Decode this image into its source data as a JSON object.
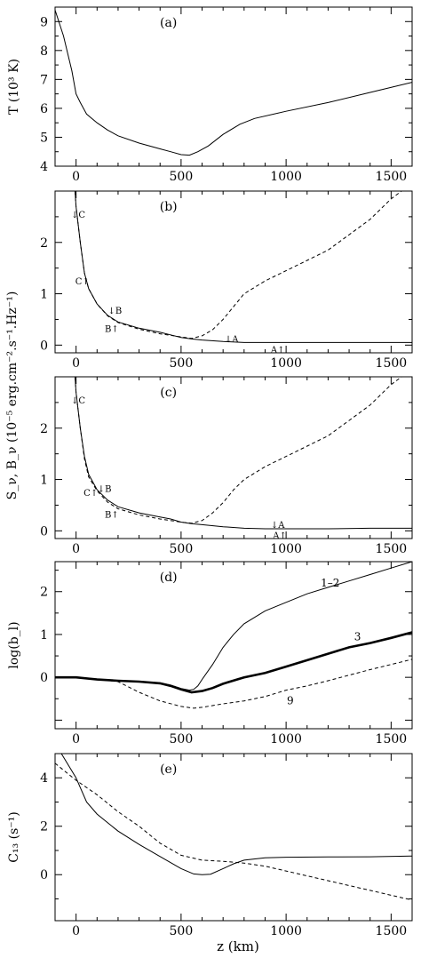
{
  "chart_data": [
    {
      "type": "line",
      "panel_label": "(a)",
      "ylabel": "T (10³ K)",
      "xlim": [
        -100,
        1600
      ],
      "ylim": [
        4,
        9.5
      ],
      "yticks": [
        4,
        5,
        6,
        7,
        8,
        9
      ],
      "xticks": [
        0,
        500,
        1000,
        1500
      ],
      "xtick_labels": [
        "0",
        "500",
        "1000",
        "1500"
      ],
      "series": [
        {
          "style": "solid",
          "width": 1,
          "points": [
            [
              -100,
              9.4
            ],
            [
              -60,
              8.5
            ],
            [
              -20,
              7.3
            ],
            [
              0,
              6.5
            ],
            [
              20,
              6.2
            ],
            [
              50,
              5.8
            ],
            [
              100,
              5.5
            ],
            [
              150,
              5.25
            ],
            [
              200,
              5.05
            ],
            [
              300,
              4.8
            ],
            [
              400,
              4.6
            ],
            [
              450,
              4.5
            ],
            [
              500,
              4.4
            ],
            [
              540,
              4.38
            ],
            [
              580,
              4.5
            ],
            [
              630,
              4.7
            ],
            [
              700,
              5.1
            ],
            [
              780,
              5.45
            ],
            [
              850,
              5.65
            ],
            [
              1000,
              5.9
            ],
            [
              1200,
              6.2
            ],
            [
              1400,
              6.55
            ],
            [
              1600,
              6.9
            ]
          ]
        }
      ]
    },
    {
      "type": "line",
      "panel_label": "(b)",
      "xlim": [
        -100,
        1600
      ],
      "ylim": [
        -0.15,
        3.0
      ],
      "yticks": [
        0,
        1,
        2
      ],
      "xticks": [
        0,
        500,
        1000,
        1500
      ],
      "xtick_labels": [
        "0",
        "500",
        "1000",
        "1500"
      ],
      "series": [
        {
          "style": "solid",
          "width": 1,
          "points": [
            [
              -5,
              3.0
            ],
            [
              0,
              2.7
            ],
            [
              20,
              2.0
            ],
            [
              40,
              1.4
            ],
            [
              60,
              1.1
            ],
            [
              100,
              0.8
            ],
            [
              150,
              0.58
            ],
            [
              200,
              0.45
            ],
            [
              300,
              0.33
            ],
            [
              400,
              0.25
            ],
            [
              450,
              0.2
            ],
            [
              500,
              0.15
            ],
            [
              550,
              0.12
            ],
            [
              600,
              0.1
            ],
            [
              700,
              0.07
            ],
            [
              800,
              0.05
            ],
            [
              1000,
              0.05
            ],
            [
              1200,
              0.05
            ],
            [
              1400,
              0.05
            ],
            [
              1600,
              0.05
            ]
          ]
        },
        {
          "style": "dashed",
          "width": 1,
          "points": [
            [
              -5,
              3.0
            ],
            [
              0,
              2.7
            ],
            [
              20,
              2.0
            ],
            [
              40,
              1.4
            ],
            [
              60,
              1.1
            ],
            [
              100,
              0.8
            ],
            [
              150,
              0.57
            ],
            [
              200,
              0.44
            ],
            [
              300,
              0.31
            ],
            [
              400,
              0.22
            ],
            [
              500,
              0.16
            ],
            [
              550,
              0.13
            ],
            [
              600,
              0.18
            ],
            [
              650,
              0.3
            ],
            [
              700,
              0.5
            ],
            [
              750,
              0.75
            ],
            [
              800,
              1.0
            ],
            [
              900,
              1.25
            ],
            [
              1000,
              1.45
            ],
            [
              1100,
              1.65
            ],
            [
              1200,
              1.85
            ],
            [
              1300,
              2.15
            ],
            [
              1400,
              2.45
            ],
            [
              1500,
              2.85
            ],
            [
              1550,
              3.0
            ]
          ]
        }
      ],
      "annotations": [
        {
          "text": "↓C",
          "x": 10,
          "y": 2.55
        },
        {
          "text": "C↑",
          "x": 30,
          "y": 1.25
        },
        {
          "text": "↓B",
          "x": 185,
          "y": 0.68
        },
        {
          "text": "B↑",
          "x": 170,
          "y": 0.33
        },
        {
          "text": "↓A",
          "x": 740,
          "y": 0.13
        },
        {
          "text": "A↑",
          "x": 960,
          "y": -0.08
        }
      ]
    },
    {
      "type": "line",
      "panel_label": "(c)",
      "ylabel": "S_ν, B_ν (10⁻⁵ erg.cm⁻².s⁻¹.Hz⁻¹)",
      "xlim": [
        -100,
        1600
      ],
      "ylim": [
        -0.15,
        3.0
      ],
      "yticks": [
        0,
        1,
        2
      ],
      "xticks": [
        0,
        500,
        1000,
        1500
      ],
      "xtick_labels": [
        "0",
        "500",
        "1000",
        "1500"
      ],
      "series": [
        {
          "style": "solid",
          "width": 1,
          "points": [
            [
              -5,
              3.0
            ],
            [
              0,
              2.7
            ],
            [
              20,
              2.0
            ],
            [
              40,
              1.45
            ],
            [
              60,
              1.1
            ],
            [
              100,
              0.8
            ],
            [
              150,
              0.6
            ],
            [
              200,
              0.47
            ],
            [
              300,
              0.35
            ],
            [
              400,
              0.27
            ],
            [
              450,
              0.23
            ],
            [
              500,
              0.17
            ],
            [
              550,
              0.14
            ],
            [
              600,
              0.12
            ],
            [
              700,
              0.08
            ],
            [
              800,
              0.05
            ],
            [
              900,
              0.04
            ],
            [
              1000,
              0.04
            ],
            [
              1200,
              0.04
            ],
            [
              1400,
              0.05
            ],
            [
              1600,
              0.05
            ]
          ]
        },
        {
          "style": "dashed",
          "width": 1,
          "points": [
            [
              -5,
              3.0
            ],
            [
              0,
              2.7
            ],
            [
              20,
              2.0
            ],
            [
              40,
              1.4
            ],
            [
              60,
              1.05
            ],
            [
              100,
              0.78
            ],
            [
              150,
              0.56
            ],
            [
              200,
              0.43
            ],
            [
              300,
              0.31
            ],
            [
              400,
              0.23
            ],
            [
              500,
              0.17
            ],
            [
              550,
              0.15
            ],
            [
              600,
              0.2
            ],
            [
              650,
              0.35
            ],
            [
              700,
              0.55
            ],
            [
              750,
              0.8
            ],
            [
              800,
              1.0
            ],
            [
              900,
              1.25
            ],
            [
              1000,
              1.45
            ],
            [
              1100,
              1.65
            ],
            [
              1200,
              1.85
            ],
            [
              1300,
              2.15
            ],
            [
              1400,
              2.45
            ],
            [
              1500,
              2.85
            ],
            [
              1550,
              3.0
            ]
          ]
        }
      ],
      "annotations": [
        {
          "text": "↓C",
          "x": 10,
          "y": 2.55
        },
        {
          "text": "C↑",
          "x": 70,
          "y": 0.75
        },
        {
          "text": "↓B",
          "x": 135,
          "y": 0.83
        },
        {
          "text": "B↑",
          "x": 170,
          "y": 0.33
        },
        {
          "text": "↓A",
          "x": 960,
          "y": 0.13
        },
        {
          "text": "A↑",
          "x": 970,
          "y": -0.08
        }
      ]
    },
    {
      "type": "line",
      "panel_label": "(d)",
      "ylabel": "log(b_l)",
      "xlim": [
        -100,
        1600
      ],
      "ylim": [
        -1.2,
        2.7
      ],
      "yticks": [
        0,
        1,
        2
      ],
      "xticks": [
        0,
        500,
        1000,
        1500
      ],
      "xtick_labels": [
        "0",
        "500",
        "1000",
        "1500"
      ],
      "series": [
        {
          "name": "1–2",
          "style": "solid",
          "width": 1,
          "points": [
            [
              -100,
              0
            ],
            [
              0,
              0
            ],
            [
              100,
              -0.05
            ],
            [
              200,
              -0.08
            ],
            [
              300,
              -0.1
            ],
            [
              400,
              -0.13
            ],
            [
              450,
              -0.18
            ],
            [
              500,
              -0.26
            ],
            [
              540,
              -0.3
            ],
            [
              560,
              -0.28
            ],
            [
              580,
              -0.2
            ],
            [
              600,
              -0.05
            ],
            [
              650,
              0.3
            ],
            [
              700,
              0.7
            ],
            [
              750,
              1.0
            ],
            [
              800,
              1.25
            ],
            [
              900,
              1.55
            ],
            [
              1000,
              1.75
            ],
            [
              1100,
              1.95
            ],
            [
              1200,
              2.1
            ],
            [
              1300,
              2.25
            ],
            [
              1400,
              2.4
            ],
            [
              1500,
              2.55
            ],
            [
              1600,
              2.7
            ]
          ]
        },
        {
          "name": "3",
          "style": "solid",
          "width": 2.6,
          "points": [
            [
              -100,
              0
            ],
            [
              0,
              0
            ],
            [
              100,
              -0.05
            ],
            [
              200,
              -0.08
            ],
            [
              300,
              -0.1
            ],
            [
              400,
              -0.14
            ],
            [
              450,
              -0.2
            ],
            [
              500,
              -0.28
            ],
            [
              550,
              -0.35
            ],
            [
              600,
              -0.32
            ],
            [
              650,
              -0.25
            ],
            [
              700,
              -0.15
            ],
            [
              800,
              0
            ],
            [
              900,
              0.1
            ],
            [
              1000,
              0.25
            ],
            [
              1100,
              0.4
            ],
            [
              1200,
              0.55
            ],
            [
              1300,
              0.7
            ],
            [
              1400,
              0.8
            ],
            [
              1500,
              0.92
            ],
            [
              1600,
              1.05
            ]
          ]
        },
        {
          "name": "9",
          "style": "dashed",
          "width": 1,
          "points": [
            [
              -100,
              0
            ],
            [
              0,
              0
            ],
            [
              100,
              -0.05
            ],
            [
              200,
              -0.1
            ],
            [
              300,
              -0.35
            ],
            [
              400,
              -0.55
            ],
            [
              500,
              -0.68
            ],
            [
              560,
              -0.72
            ],
            [
              600,
              -0.7
            ],
            [
              700,
              -0.62
            ],
            [
              800,
              -0.55
            ],
            [
              900,
              -0.45
            ],
            [
              1000,
              -0.3
            ],
            [
              1100,
              -0.2
            ],
            [
              1200,
              -0.08
            ],
            [
              1300,
              0.05
            ],
            [
              1400,
              0.18
            ],
            [
              1500,
              0.3
            ],
            [
              1600,
              0.42
            ]
          ]
        }
      ],
      "curve_labels": [
        {
          "text": "1–2",
          "x": 1210,
          "y": 2.2
        },
        {
          "text": "3",
          "x": 1340,
          "y": 0.95
        },
        {
          "text": "9",
          "x": 1020,
          "y": -0.55
        }
      ]
    },
    {
      "type": "line",
      "panel_label": "(e)",
      "ylabel": "C₁₃ (s⁻¹)",
      "xlabel": "z (km)",
      "xlim": [
        -100,
        1600
      ],
      "ylim": [
        -1.9,
        5.0
      ],
      "yticks": [
        0,
        2,
        4
      ],
      "xticks": [
        0,
        500,
        1000,
        1500
      ],
      "xtick_labels": [
        "0",
        "500",
        "1000",
        "1500"
      ],
      "series": [
        {
          "style": "solid",
          "width": 1,
          "points": [
            [
              -70,
              5.0
            ],
            [
              0,
              4.0
            ],
            [
              50,
              3.0
            ],
            [
              100,
              2.5
            ],
            [
              200,
              1.8
            ],
            [
              300,
              1.25
            ],
            [
              400,
              0.75
            ],
            [
              500,
              0.25
            ],
            [
              560,
              0.03
            ],
            [
              600,
              0.0
            ],
            [
              640,
              0.02
            ],
            [
              700,
              0.25
            ],
            [
              750,
              0.45
            ],
            [
              800,
              0.6
            ],
            [
              900,
              0.7
            ],
            [
              1000,
              0.72
            ],
            [
              1200,
              0.73
            ],
            [
              1400,
              0.74
            ],
            [
              1600,
              0.77
            ]
          ]
        },
        {
          "style": "dashed",
          "width": 1,
          "points": [
            [
              -100,
              4.6
            ],
            [
              0,
              3.9
            ],
            [
              100,
              3.3
            ],
            [
              200,
              2.6
            ],
            [
              300,
              2.0
            ],
            [
              400,
              1.3
            ],
            [
              500,
              0.8
            ],
            [
              600,
              0.6
            ],
            [
              700,
              0.55
            ],
            [
              800,
              0.48
            ],
            [
              900,
              0.35
            ],
            [
              1000,
              0.15
            ],
            [
              1100,
              -0.05
            ],
            [
              1200,
              -0.25
            ],
            [
              1300,
              -0.45
            ],
            [
              1400,
              -0.65
            ],
            [
              1500,
              -0.85
            ],
            [
              1600,
              -1.05
            ]
          ]
        }
      ]
    }
  ]
}
